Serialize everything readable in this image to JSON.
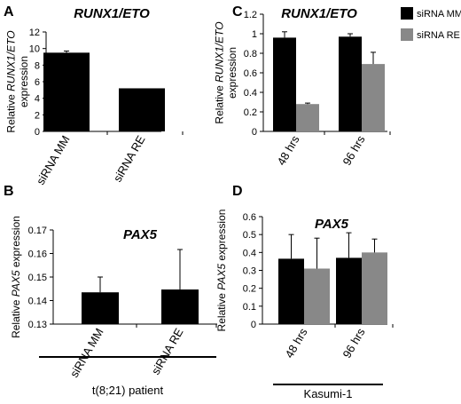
{
  "colors": {
    "siRNA_MM": "#000000",
    "siRNA_RE": "#888888",
    "axis": "#000000"
  },
  "legend": [
    "siRNA MM",
    "siRNA RE"
  ],
  "footers": {
    "B": "t(8;21) patient",
    "D": "Kasumi-1"
  },
  "chart_data": [
    {
      "panel": "A",
      "type": "bar",
      "title": "RUNX1/ETO",
      "ylabel_prefix": "Relative ",
      "ylabel_gene": "RUNX1/ETO",
      "ylabel_suffix": "expression",
      "categories": [
        "siRNA MM",
        "siRNA RE"
      ],
      "values": [
        9.5,
        5.2
      ],
      "errors": [
        0.2,
        0
      ],
      "bar_colors": [
        "#000000",
        "#000000"
      ],
      "ylim": [
        0,
        12
      ],
      "yticks": [
        "0",
        "2",
        "4",
        "6",
        "8",
        "10",
        "12"
      ]
    },
    {
      "panel": "C",
      "type": "bar",
      "title": "RUNX1/ETO",
      "ylabel_prefix": "Relative ",
      "ylabel_gene": "RUNX1/ETO",
      "ylabel_suffix": "expression",
      "categories": [
        "48 hrs",
        "96 hrs"
      ],
      "series": [
        {
          "name": "siRNA MM",
          "values": [
            0.96,
            0.97
          ],
          "errors": [
            0.06,
            0.03
          ]
        },
        {
          "name": "siRNA RE",
          "values": [
            0.28,
            0.69
          ],
          "errors": [
            0.01,
            0.12
          ]
        }
      ],
      "ylim": [
        0,
        1.2
      ],
      "yticks": [
        "0",
        "0.2",
        "0.4",
        "0.6",
        "0.8",
        "1",
        "1.2"
      ]
    },
    {
      "panel": "B",
      "type": "bar",
      "title": "PAX5",
      "ylabel_prefix": "Relative ",
      "ylabel_gene": "PAX5",
      "ylabel_suffix": " expression",
      "categories": [
        "siRNA MM",
        "siRNA RE"
      ],
      "values": [
        0.1435,
        0.1447
      ],
      "errors": [
        0.0065,
        0.017
      ],
      "bar_colors": [
        "#000000",
        "#000000"
      ],
      "ylim": [
        0.13,
        0.17
      ],
      "yticks": [
        "0.13",
        "0.14",
        "0.15",
        "0.16",
        "0.17"
      ]
    },
    {
      "panel": "D",
      "type": "bar",
      "title": "PAX5",
      "ylabel_prefix": "Relative ",
      "ylabel_gene": "PAX5",
      "ylabel_suffix": " expression",
      "categories": [
        "48 hrs",
        "96 hrs"
      ],
      "series": [
        {
          "name": "siRNA MM",
          "values": [
            0.365,
            0.37
          ],
          "errors": [
            0.135,
            0.14
          ]
        },
        {
          "name": "siRNA RE",
          "values": [
            0.31,
            0.4
          ],
          "errors": [
            0.17,
            0.075
          ]
        }
      ],
      "ylim": [
        0,
        0.6
      ],
      "yticks": [
        "0",
        "0.1",
        "0.2",
        "0.3",
        "0.4",
        "0.5",
        "0.6"
      ]
    }
  ]
}
